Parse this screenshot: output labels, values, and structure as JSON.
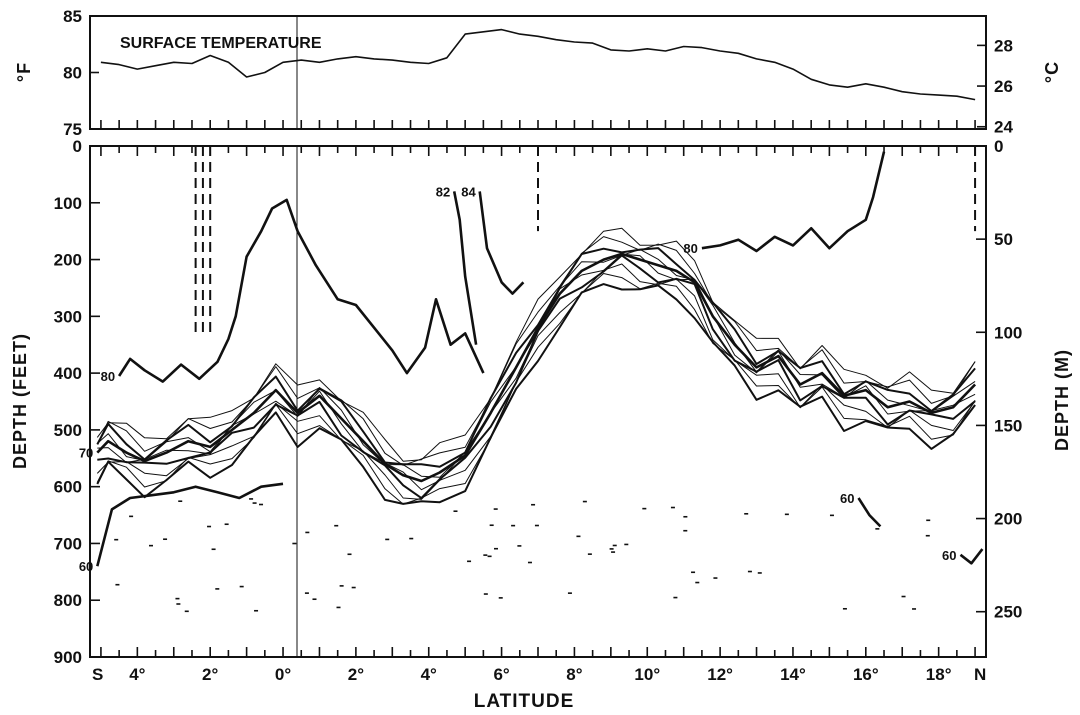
{
  "chart_data": [
    {
      "type": "line",
      "title": "SURFACE TEMPERATURE",
      "ylabel_left": "°F",
      "ylabel_right": "°C",
      "ylim_left": [
        75,
        85
      ],
      "ylim_right_ticks": [
        "24",
        "26",
        "28"
      ],
      "ylim_left_ticks": [
        "75",
        "80",
        "85"
      ],
      "series": [
        {
          "values_x_latitude": [
            -5,
            -4.5,
            -4,
            -3.5,
            -3,
            -2.5,
            -2,
            -1.5,
            -1,
            -0.5,
            0,
            0.5,
            1,
            1.5,
            2,
            2.5,
            3,
            3.5,
            4,
            4.5,
            5,
            5.5,
            6,
            6.5,
            7,
            7.5,
            8,
            8.5,
            9,
            9.5,
            10,
            10.5,
            11,
            11.5,
            12,
            12.5,
            13,
            13.5,
            14,
            14.5,
            15,
            15.5,
            16,
            16.5,
            17,
            17.5,
            18,
            18.5,
            19
          ],
          "values_y_degF": [
            80.9,
            80.7,
            80.3,
            80.6,
            80.9,
            80.8,
            81.5,
            80.9,
            79.6,
            80.0,
            80.9,
            81.1,
            80.9,
            81.2,
            81.4,
            81.2,
            81.1,
            80.9,
            80.8,
            81.3,
            83.4,
            83.6,
            83.8,
            83.4,
            83.2,
            82.9,
            82.7,
            82.6,
            82.0,
            81.9,
            82.1,
            81.9,
            82.3,
            82.2,
            81.9,
            81.7,
            81.2,
            80.9,
            80.3,
            79.4,
            78.9,
            78.7,
            79.0,
            78.7,
            78.3,
            78.1,
            78.0,
            77.9,
            77.6
          ]
        }
      ]
    },
    {
      "type": "line",
      "subtype": "isotherm depth section",
      "xlabel": "LATITUDE",
      "ylabel_left": "DEPTH (FEET)",
      "ylabel_right": "DEPTH (M)",
      "ylim_feet": [
        0,
        900
      ],
      "xlim_latitude": [
        -5.3,
        19.3
      ],
      "x_tick_labels": [
        "S",
        "4°",
        "2°",
        "0°",
        "2°",
        "4°",
        "6°",
        "8°",
        "10°",
        "12°",
        "14°",
        "16°",
        "18°",
        "N"
      ],
      "x_tick_latitudes": [
        -4,
        -2,
        0,
        2,
        4,
        6,
        8,
        10,
        12,
        14,
        16,
        18
      ],
      "y_tick_labels_feet": [
        "0",
        "100",
        "200",
        "300",
        "400",
        "500",
        "600",
        "700",
        "800",
        "900"
      ],
      "y_tick_labels_m": [
        "0",
        "50",
        "100",
        "150",
        "200",
        "250"
      ],
      "series": [
        {
          "name": "80",
          "x": [
            -4.5,
            -4.2,
            -3.8,
            -3.3,
            -2.8,
            -2.3,
            -1.8,
            -1.5,
            -1.3,
            -1.0,
            -0.6,
            -0.3,
            0.1,
            0.4,
            0.9,
            1.5,
            2.0,
            2.5,
            3.0,
            3.4,
            3.9,
            4.2,
            4.6,
            5.0,
            5.5
          ],
          "depth_ft": [
            405,
            375,
            395,
            415,
            385,
            410,
            380,
            340,
            300,
            195,
            150,
            110,
            95,
            150,
            210,
            270,
            280,
            320,
            360,
            400,
            355,
            270,
            350,
            330,
            400
          ]
        },
        {
          "name": "80",
          "x": [
            11.5,
            12.0,
            12.5,
            13.0,
            13.5,
            14.0,
            14.5,
            15.0,
            15.5,
            16.0,
            16.2,
            16.5
          ],
          "depth_ft": [
            180,
            175,
            165,
            185,
            160,
            175,
            145,
            180,
            150,
            130,
            90,
            10
          ]
        },
        {
          "name": "82",
          "x": [
            4.7,
            4.85,
            5.0,
            5.3
          ],
          "depth_ft": [
            80,
            130,
            230,
            350
          ]
        },
        {
          "name": "84",
          "x": [
            5.4,
            5.6,
            6.0,
            6.3,
            6.6
          ],
          "depth_ft": [
            80,
            180,
            240,
            260,
            240
          ]
        },
        {
          "name": "70",
          "x": [
            -5.1,
            -4.8,
            -4.3,
            -3.8,
            -3.2,
            -2.6,
            -2.0,
            -1.4,
            -0.8,
            -0.2,
            0.4,
            1.0,
            1.6,
            2.2,
            2.8,
            3.3,
            3.8,
            4.3,
            5.0,
            5.7,
            6.4,
            7.0,
            7.6,
            8.2,
            8.8,
            9.3,
            9.8,
            10.3,
            10.8,
            11.3,
            11.8,
            12.4,
            13.0,
            13.6,
            14.2,
            14.8,
            15.4,
            16.0,
            16.6,
            17.2,
            17.8,
            18.4,
            19.0
          ],
          "depth_ft": [
            540,
            520,
            540,
            555,
            540,
            520,
            530,
            500,
            470,
            430,
            470,
            440,
            480,
            520,
            560,
            580,
            590,
            575,
            545,
            470,
            390,
            320,
            260,
            220,
            200,
            190,
            200,
            210,
            220,
            240,
            300,
            350,
            390,
            370,
            420,
            400,
            440,
            430,
            460,
            450,
            470,
            460,
            420
          ]
        },
        {
          "name": "60",
          "x": [
            -5.1,
            -4.7,
            -4.2,
            -3.6,
            -3.0,
            -2.4,
            -1.8,
            -1.2,
            -0.6,
            0.0
          ],
          "depth_ft": [
            740,
            640,
            620,
            615,
            610,
            600,
            610,
            620,
            600,
            595
          ]
        },
        {
          "name": "60",
          "x": [
            15.8,
            16.1,
            16.4
          ],
          "depth_ft": [
            620,
            650,
            670
          ]
        },
        {
          "name": "60",
          "x": [
            18.6,
            18.9,
            19.2
          ],
          "depth_ft": [
            720,
            735,
            710
          ]
        }
      ],
      "contour_labels": [
        "80",
        "80",
        "80",
        "80",
        "82",
        "84",
        "70",
        "70",
        "60",
        "60",
        "60"
      ]
    }
  ]
}
